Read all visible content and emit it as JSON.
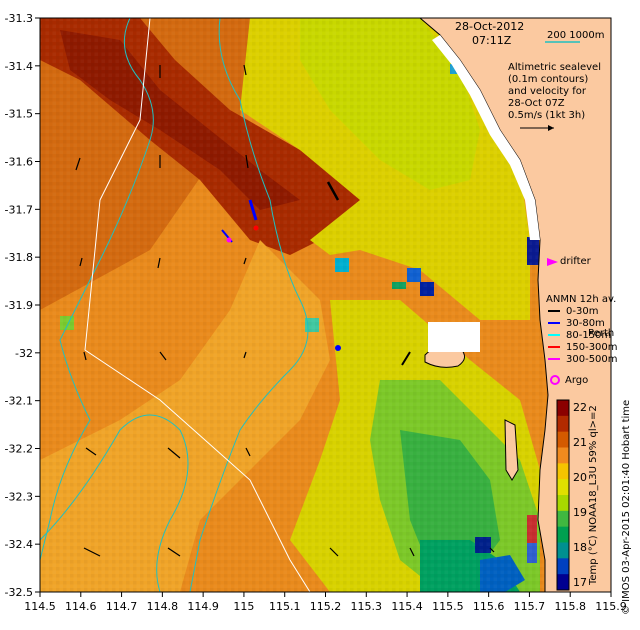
{
  "header": {
    "date": "28-Oct-2012",
    "time": "07:11Z",
    "bathy_label": "200  1000m"
  },
  "annotations": {
    "altimetry_lines": [
      "Altimetric sealevel",
      "(0.1m contours)",
      "and velocity for",
      "28-Oct 07Z",
      "0.5m/s (1kt 3h)"
    ],
    "drifter": "drifter",
    "anmn_title": "ANMN 12h av.",
    "anmn_depths": [
      "0-30m",
      "30-80m",
      "80-150m",
      "150-300m",
      "300-500m"
    ],
    "anmn_colors": [
      "#000000",
      "#0000ff",
      "#00ffff",
      "#ff0000",
      "#ff00ff"
    ],
    "perth": "Perth",
    "argo": "Argo"
  },
  "colorbar": {
    "title": "Temp (°C) NOAA18_L3U 59% ql>=2",
    "ticks": [
      "22",
      "21",
      "20",
      "19",
      "18",
      "17"
    ],
    "colors": [
      "#8b0000",
      "#b22a00",
      "#d45a00",
      "#f08a1e",
      "#f5c400",
      "#e0e000",
      "#a8d800",
      "#40b840",
      "#00a050",
      "#009090",
      "#0040c0",
      "#000090"
    ]
  },
  "credit": "© IMOS 03-Apr-2015 02:01:40 Hobart time",
  "axes": {
    "x_ticks": [
      "114.5",
      "114.6",
      "114.7",
      "114.8",
      "114.9",
      "115",
      "115.1",
      "115.2",
      "115.3",
      "115.4",
      "115.5",
      "115.6",
      "115.7",
      "115.8",
      "115.9"
    ],
    "y_ticks": [
      "-31.3",
      "-31.4",
      "-31.5",
      "-31.6",
      "-31.7",
      "-31.8",
      "-31.9",
      "-32",
      "-32.1",
      "-32.2",
      "-32.3",
      "-32.4",
      "-32.5"
    ],
    "x_range": [
      114.5,
      115.9
    ],
    "y_range": [
      -32.5,
      -31.3
    ]
  },
  "colors": {
    "land": "#fbc9a0",
    "coast": "#000000",
    "bathy_200": "#20c0c0",
    "bathy_1000": "#ffffff"
  }
}
